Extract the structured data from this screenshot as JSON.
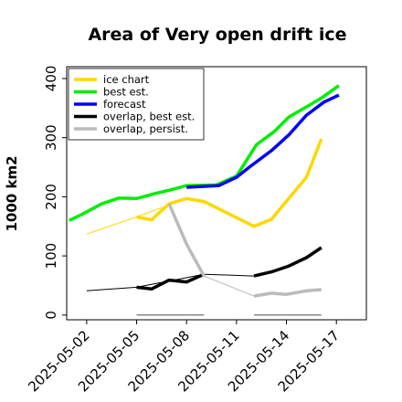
{
  "chart_data": {
    "type": "line",
    "title": "Area of Very open drift ice",
    "ylabel": "1000 km2",
    "xlabel": "",
    "ylim": [
      -8,
      420
    ],
    "yticks": [
      0,
      100,
      200,
      300,
      400
    ],
    "xlim": [
      -4,
      56
    ],
    "date_ticks": [
      {
        "x": 0,
        "label": "2025-05-02",
        "color": "#000000"
      },
      {
        "x": 10,
        "label": "2025-05-05",
        "color": "#000000"
      },
      {
        "x": 20,
        "label": "2025-05-08",
        "color": "#228B22"
      },
      {
        "x": 30,
        "label": "2025-05-11",
        "color": "#000000"
      },
      {
        "x": 40,
        "label": "2025-05-14",
        "color": "#000000"
      },
      {
        "x": 50,
        "label": "2025-05-17",
        "color": "#000000"
      }
    ],
    "legend": {
      "location": "upper left",
      "entries": [
        {
          "label": "ice chart",
          "color": "#FFD700"
        },
        {
          "label": "best est.",
          "color": "#00EE00"
        },
        {
          "label": "forecast",
          "color": "#0000FF"
        },
        {
          "label": "overlap, best est.",
          "color": "#000000"
        },
        {
          "label": "overlap, persist.",
          "color": "#BBBBBB"
        }
      ]
    },
    "series": [
      {
        "name": "best est.",
        "color": "#00EE00",
        "width": 3.5,
        "points": [
          [
            -3.5,
            160
          ],
          [
            -1,
            170
          ],
          [
            3,
            188
          ],
          [
            6.5,
            198
          ],
          [
            10,
            197
          ],
          [
            13.5,
            205
          ],
          [
            17,
            212
          ],
          [
            20,
            219
          ],
          [
            26,
            220
          ],
          [
            30,
            235
          ],
          [
            34,
            288
          ],
          [
            37.5,
            310
          ],
          [
            40.5,
            335
          ],
          [
            44,
            352
          ],
          [
            47,
            367
          ],
          [
            50.5,
            388
          ]
        ]
      },
      {
        "name": "forecast",
        "color": "#0000FF",
        "width": 3.5,
        "points": [
          [
            20,
            216
          ],
          [
            26.5,
            219
          ],
          [
            30,
            233
          ],
          [
            33,
            253
          ],
          [
            37,
            278
          ],
          [
            40.5,
            305
          ],
          [
            44,
            338
          ],
          [
            47.5,
            360
          ],
          [
            50.5,
            372
          ]
        ]
      },
      {
        "name": "ice chart (thin)",
        "color": "#FFD700",
        "width": 1,
        "points": [
          [
            0,
            137
          ],
          [
            10,
            166
          ],
          [
            20,
            197
          ],
          [
            23.5,
            192
          ],
          [
            33.5,
            150
          ]
        ]
      },
      {
        "name": "ice chart",
        "color": "#FFD700",
        "width": 3.5,
        "points": [
          [
            10,
            166
          ],
          [
            13,
            161
          ],
          [
            16.5,
            188
          ],
          [
            20,
            197
          ],
          [
            23.5,
            192
          ],
          [
            33.5,
            150
          ],
          [
            37,
            162
          ],
          [
            44,
            233
          ],
          [
            47,
            298
          ]
        ]
      },
      {
        "name": "overlap, best est. (thin)",
        "color": "#000000",
        "width": 1,
        "points": [
          [
            0,
            41
          ],
          [
            10,
            47
          ],
          [
            23.5,
            69
          ],
          [
            33.5,
            66
          ]
        ]
      },
      {
        "name": "overlap, best est.",
        "color": "#000000",
        "width": 3.5,
        "points": [
          [
            10,
            47
          ],
          [
            13,
            44
          ],
          [
            16.5,
            59
          ],
          [
            20,
            56
          ],
          [
            23.5,
            69
          ]
        ]
      },
      {
        "name": "overlap, best est. (later)",
        "color": "#000000",
        "width": 3.5,
        "points": [
          [
            33.5,
            66
          ],
          [
            37,
            73
          ],
          [
            40.5,
            83
          ],
          [
            44,
            97
          ],
          [
            47,
            114
          ]
        ]
      },
      {
        "name": "overlap, persist. (thin)",
        "color": "#BBBBBB",
        "width": 1,
        "points": [
          [
            23.5,
            66
          ],
          [
            33.5,
            32
          ]
        ]
      },
      {
        "name": "overlap, persist.",
        "color": "#BBBBBB",
        "width": 3.5,
        "points": [
          [
            16.5,
            188
          ],
          [
            20,
            120
          ],
          [
            23.5,
            66
          ]
        ]
      },
      {
        "name": "overlap, persist. (later)",
        "color": "#BBBBBB",
        "width": 3.5,
        "points": [
          [
            33.5,
            32
          ],
          [
            37,
            37
          ],
          [
            40,
            35
          ],
          [
            44,
            41
          ],
          [
            47,
            43
          ]
        ]
      },
      {
        "name": "persist. baseline 1",
        "color": "#888888",
        "width": 1.5,
        "points": [
          [
            10,
            0
          ],
          [
            23.5,
            0
          ]
        ]
      },
      {
        "name": "persist. baseline 2",
        "color": "#888888",
        "width": 1.5,
        "points": [
          [
            33.5,
            0
          ],
          [
            47,
            0
          ]
        ]
      }
    ],
    "grid": false
  }
}
